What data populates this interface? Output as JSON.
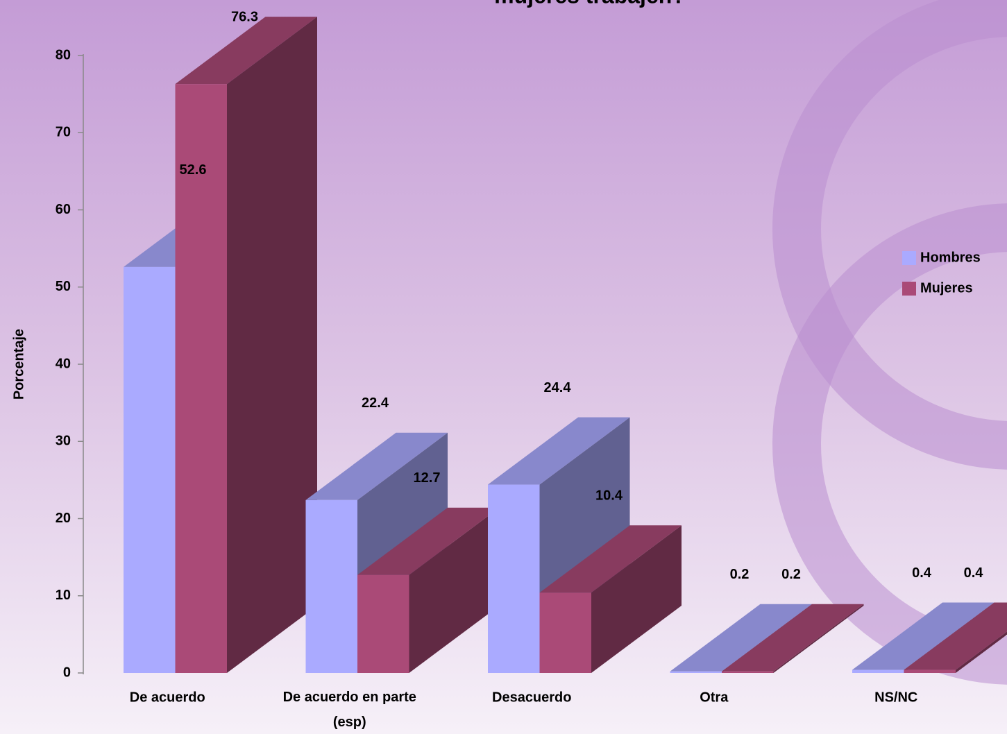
{
  "chart_data": {
    "type": "bar3d",
    "title": "mujeres trabajen?",
    "ylabel": "Porcentaje",
    "categories": [
      "De acuerdo",
      "De acuerdo en parte (esp)",
      "Desacuerdo",
      "Otra",
      "NS/NC"
    ],
    "series": [
      {
        "name": "Hombres",
        "color": "#aaaaff",
        "values": [
          52.6,
          22.4,
          24.4,
          0.2,
          0.4
        ]
      },
      {
        "name": "Mujeres",
        "color": "#aa4a77",
        "values": [
          76.3,
          12.7,
          10.4,
          0.2,
          0.4
        ]
      }
    ],
    "ylim": [
      0,
      80
    ],
    "yticks": [
      0,
      10,
      20,
      30,
      40,
      50,
      60,
      70,
      80
    ],
    "grid": false
  }
}
